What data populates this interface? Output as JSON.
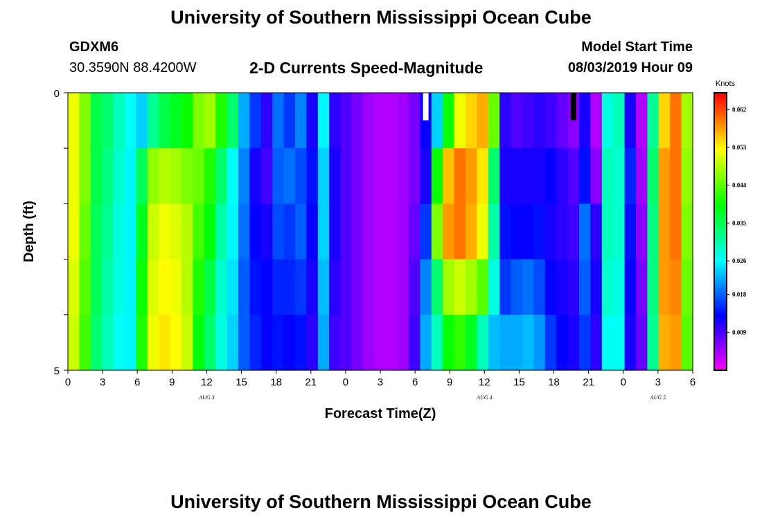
{
  "header": {
    "top_title": "University of Southern Mississippi Ocean Cube",
    "bottom_title": "University of Southern Mississippi Ocean Cube",
    "station_id": "GDXM6",
    "station_coords": "30.3590N 88.4200W",
    "plot_title": "2-D Currents Speed-Magnitude",
    "model_start_label": "Model Start Time",
    "model_start_value": "08/03/2019 Hour 09"
  },
  "chart_data": {
    "type": "heatmap",
    "title": "2-D Currents Speed-Magnitude",
    "xlabel": "Forecast Time(Z)",
    "ylabel": "Depth (ft)",
    "x_tick_labels": [
      "0",
      "3",
      "6",
      "9",
      "12",
      "15",
      "18",
      "21",
      "0",
      "3",
      "6",
      "9",
      "12",
      "15",
      "18",
      "21",
      "0",
      "3",
      "6"
    ],
    "x_date_labels": [
      "AUG 3",
      "AUG 4",
      "AUG 5"
    ],
    "y_tick_labels": [
      "0",
      "5"
    ],
    "y_range": [
      0,
      5
    ],
    "x_range_hours": [
      0,
      54
    ],
    "colorbar": {
      "units": "Knots",
      "tick_labels": [
        "0.062",
        "0.053",
        "0.044",
        "0.035",
        "0.026",
        "0.018",
        "0.009"
      ],
      "range": [
        0.0,
        0.066
      ]
    },
    "depth_rows": 5,
    "time_columns_hours": [
      0,
      1,
      2,
      3,
      4,
      5,
      6,
      7,
      8,
      9,
      10,
      11,
      12,
      13,
      14,
      15,
      16,
      17,
      18,
      19,
      20,
      21,
      22,
      23,
      24,
      25,
      26,
      27,
      28,
      29,
      30,
      31,
      32,
      33,
      34,
      35,
      36,
      37,
      38,
      39,
      40,
      41,
      42,
      43,
      44,
      45,
      46,
      47,
      48,
      49,
      50,
      51,
      52,
      53,
      54
    ],
    "values_knots": [
      [
        0.052,
        0.046,
        0.036,
        0.034,
        0.03,
        0.027,
        0.024,
        0.032,
        0.036,
        0.038,
        0.04,
        0.046,
        0.048,
        0.041,
        0.034,
        0.022,
        0.016,
        0.011,
        0.019,
        0.016,
        0.02,
        0.012,
        0.026,
        0.011,
        0.009,
        0.007,
        0.005,
        0.004,
        0.004,
        0.005,
        0.007,
        0.013,
        0.024,
        0.04,
        0.052,
        0.055,
        0.057,
        0.045,
        0.011,
        0.009,
        0.01,
        0.011,
        0.01,
        0.008,
        0.006,
        0.012,
        0.004,
        0.028,
        0.03,
        0.012,
        0.004,
        0.032,
        0.055,
        0.06,
        0.048
      ],
      [
        0.052,
        0.046,
        0.036,
        0.033,
        0.029,
        0.026,
        0.035,
        0.047,
        0.049,
        0.048,
        0.046,
        0.045,
        0.041,
        0.034,
        0.027,
        0.02,
        0.012,
        0.01,
        0.018,
        0.019,
        0.017,
        0.014,
        0.024,
        0.012,
        0.009,
        0.007,
        0.005,
        0.004,
        0.004,
        0.005,
        0.007,
        0.012,
        0.04,
        0.056,
        0.06,
        0.058,
        0.054,
        0.034,
        0.012,
        0.012,
        0.012,
        0.012,
        0.013,
        0.011,
        0.009,
        0.014,
        0.006,
        0.03,
        0.029,
        0.015,
        0.005,
        0.034,
        0.058,
        0.06,
        0.047
      ],
      [
        0.052,
        0.045,
        0.035,
        0.032,
        0.028,
        0.026,
        0.038,
        0.05,
        0.052,
        0.051,
        0.049,
        0.043,
        0.039,
        0.031,
        0.026,
        0.019,
        0.013,
        0.012,
        0.017,
        0.016,
        0.018,
        0.013,
        0.024,
        0.012,
        0.009,
        0.007,
        0.005,
        0.004,
        0.004,
        0.005,
        0.008,
        0.016,
        0.046,
        0.058,
        0.06,
        0.057,
        0.052,
        0.031,
        0.014,
        0.013,
        0.013,
        0.014,
        0.012,
        0.011,
        0.01,
        0.019,
        0.011,
        0.03,
        0.029,
        0.014,
        0.006,
        0.033,
        0.058,
        0.06,
        0.046
      ],
      [
        0.051,
        0.044,
        0.035,
        0.031,
        0.028,
        0.026,
        0.04,
        0.051,
        0.053,
        0.052,
        0.049,
        0.041,
        0.036,
        0.029,
        0.025,
        0.018,
        0.014,
        0.013,
        0.015,
        0.015,
        0.016,
        0.012,
        0.023,
        0.011,
        0.009,
        0.007,
        0.005,
        0.004,
        0.004,
        0.005,
        0.009,
        0.02,
        0.034,
        0.048,
        0.05,
        0.048,
        0.044,
        0.028,
        0.016,
        0.018,
        0.019,
        0.017,
        0.013,
        0.012,
        0.011,
        0.018,
        0.012,
        0.029,
        0.028,
        0.013,
        0.007,
        0.033,
        0.058,
        0.059,
        0.045
      ],
      [
        0.05,
        0.043,
        0.034,
        0.03,
        0.027,
        0.026,
        0.041,
        0.052,
        0.054,
        0.053,
        0.05,
        0.039,
        0.034,
        0.028,
        0.024,
        0.018,
        0.015,
        0.013,
        0.014,
        0.013,
        0.014,
        0.011,
        0.022,
        0.01,
        0.009,
        0.007,
        0.005,
        0.004,
        0.004,
        0.005,
        0.01,
        0.022,
        0.03,
        0.04,
        0.042,
        0.038,
        0.03,
        0.023,
        0.022,
        0.022,
        0.023,
        0.021,
        0.016,
        0.013,
        0.012,
        0.016,
        0.011,
        0.027,
        0.027,
        0.012,
        0.008,
        0.032,
        0.057,
        0.058,
        0.044
      ]
    ],
    "missing_cells": [
      {
        "hour": 31,
        "depth_row": 0,
        "color": "#ffffff"
      },
      {
        "hour": 44,
        "depth_row": 0,
        "color": "#000000"
      }
    ]
  }
}
